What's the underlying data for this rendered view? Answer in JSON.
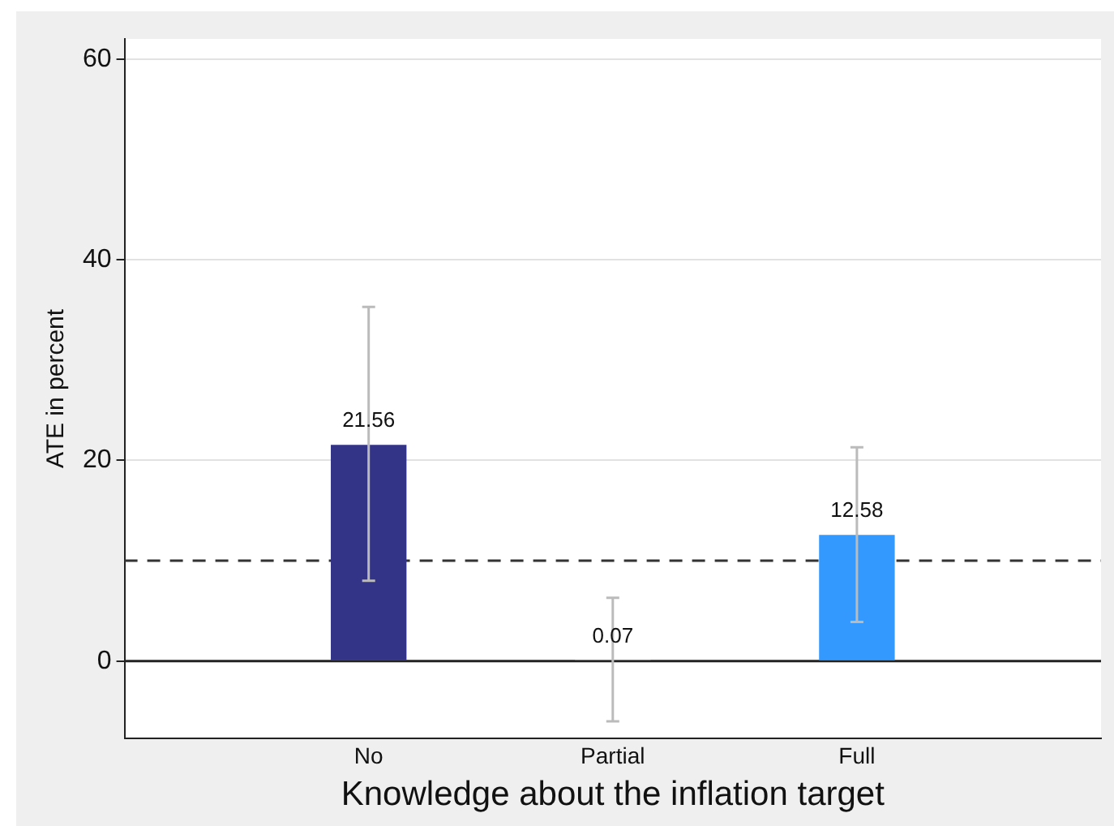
{
  "chart_data": {
    "type": "bar",
    "xlabel": "Knowledge about the inflation target",
    "ylabel": "ATE in percent",
    "categories": [
      "No",
      "Partial",
      "Full"
    ],
    "values": [
      21.56,
      0.07,
      12.58
    ],
    "colors": [
      "#333388",
      "#add8e6",
      "#3399ff"
    ],
    "errors": [
      [
        8.0,
        35.3
      ],
      [
        -6.0,
        6.3
      ],
      [
        3.9,
        21.3
      ]
    ],
    "data_labels": true,
    "ylim": [
      -7.7,
      62
    ],
    "yticks": [
      0,
      20,
      40,
      60
    ],
    "grid": "y",
    "legend": false,
    "ref_lines": [
      {
        "axis": "y",
        "value": 10,
        "color": "#333333",
        "line_style": "dashed"
      },
      {
        "axis": "y",
        "value": 0,
        "color": "#222222",
        "line_style": "solid"
      }
    ]
  }
}
